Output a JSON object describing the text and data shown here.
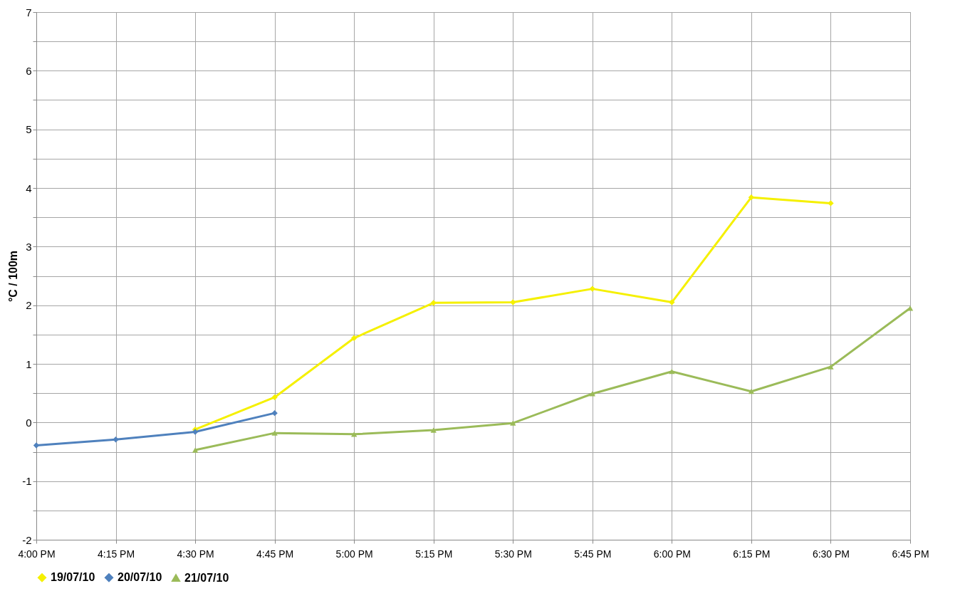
{
  "chart_data": {
    "type": "line",
    "ylabel": "°C / 100m",
    "categories": [
      "4:00 PM",
      "4:15 PM",
      "4:30 PM",
      "4:45 PM",
      "5:00 PM",
      "5:15 PM",
      "5:30 PM",
      "5:45 PM",
      "6:00 PM",
      "6:15 PM",
      "6:30 PM",
      "6:45 PM"
    ],
    "series": [
      {
        "name": "19/07/10",
        "color": "#f5f000",
        "marker": "diamond",
        "values": [
          null,
          null,
          -0.12,
          0.43,
          1.44,
          2.04,
          2.05,
          2.28,
          2.05,
          3.84,
          3.74,
          null
        ]
      },
      {
        "name": "20/07/10",
        "color": "#4f81bd",
        "marker": "diamond",
        "values": [
          -0.39,
          -0.29,
          -0.16,
          0.16,
          null,
          null,
          null,
          null,
          null,
          null,
          null,
          null
        ]
      },
      {
        "name": "21/07/10",
        "color": "#9bbb59",
        "marker": "triangle",
        "values": [
          null,
          null,
          -0.47,
          -0.18,
          -0.2,
          -0.13,
          -0.01,
          0.49,
          0.87,
          0.53,
          0.95,
          1.95
        ]
      }
    ],
    "ylim": [
      -2,
      7
    ],
    "yticks": [
      -2,
      {
        "value": -1.5,
        "label": null
      },
      -1,
      {
        "value": -0.5,
        "label": null
      },
      0,
      {
        "value": 0.5,
        "label": null
      },
      1,
      {
        "value": 1.5,
        "label": null
      },
      2,
      {
        "value": 2.5,
        "label": null
      },
      3,
      {
        "value": 3.5,
        "label": null
      },
      4,
      {
        "value": 4.5,
        "label": null
      },
      5,
      {
        "value": 5.5,
        "label": null
      },
      6,
      {
        "value": 6.5,
        "label": null
      },
      7
    ],
    "grid": true,
    "legend": "bottom",
    "line_style": "solid"
  }
}
